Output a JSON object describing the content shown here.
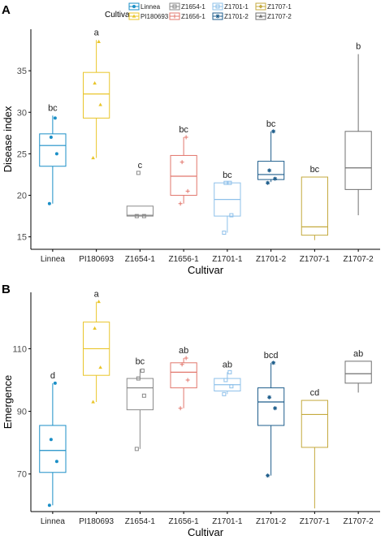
{
  "panels": [
    {
      "letter": "A",
      "legend": {
        "title": "Cultivar",
        "entries": [
          "Linnea",
          "PI180693",
          "Z1654-1",
          "Z1656-1",
          "Z1701-1",
          "Z1701-2",
          "Z1707-1",
          "Z1707-2"
        ]
      }
    },
    {
      "letter": "B"
    }
  ],
  "colors": {
    "Linnea": "#1b8fc7",
    "PI180693": "#e9c52a",
    "Z1654-1": "#8a8a8a",
    "Z1656-1": "#e2776d",
    "Z1701-1": "#8ec0ea",
    "Z1701-2": "#1f5e8c",
    "Z1707-1": "#c4aa3e",
    "Z1707-2": "#707070"
  },
  "chart_data": [
    {
      "type": "boxplot",
      "xlabel": "Cultivar",
      "ylabel": "Disease index",
      "ylim": [
        13.5,
        40
      ],
      "yticks": [
        15,
        20,
        25,
        30,
        35
      ],
      "categories": [
        "Linnea",
        "PI180693",
        "Z1654-1",
        "Z1656-1",
        "Z1701-1",
        "Z1701-2",
        "Z1707-1",
        "Z1707-2"
      ],
      "boxes": [
        {
          "cultivar": "Linnea",
          "letter": "bc",
          "q1": 23.5,
          "median": 26.0,
          "q3": 27.4,
          "whisker_low": 19.0,
          "whisker_high": 29.6,
          "points": [
            19.0,
            25.0,
            27.0,
            29.3
          ]
        },
        {
          "cultivar": "PI180693",
          "letter": "a",
          "q1": 29.3,
          "median": 32.2,
          "q3": 34.8,
          "whisker_low": 24.5,
          "whisker_high": 38.7,
          "points": [
            24.5,
            30.9,
            33.5,
            38.5
          ]
        },
        {
          "cultivar": "Z1654-1",
          "letter": "c",
          "q1": 17.5,
          "median": 17.6,
          "q3": 18.7,
          "whisker_low": 17.5,
          "whisker_high": 18.7,
          "points": [
            17.5,
            17.5,
            22.7
          ]
        },
        {
          "cultivar": "Z1656-1",
          "letter": "bc",
          "q1": 20.0,
          "median": 22.3,
          "q3": 24.8,
          "whisker_low": 19.0,
          "whisker_high": 27.0,
          "points": [
            19.0,
            20.5,
            24.0,
            27.0
          ]
        },
        {
          "cultivar": "Z1701-1",
          "letter": "bc",
          "q1": 17.5,
          "median": 19.5,
          "q3": 21.5,
          "whisker_low": 15.5,
          "whisker_high": 21.5,
          "points": [
            15.5,
            17.6,
            21.5,
            21.5
          ]
        },
        {
          "cultivar": "Z1701-2",
          "letter": "bc",
          "q1": 21.9,
          "median": 22.5,
          "q3": 24.1,
          "whisker_low": 21.6,
          "whisker_high": 27.7,
          "points": [
            21.5,
            22.0,
            23.0,
            27.7
          ]
        },
        {
          "cultivar": "Z1707-1",
          "letter": "bc",
          "q1": 15.2,
          "median": 16.2,
          "q3": 22.2,
          "whisker_low": 14.6,
          "whisker_high": 22.2,
          "points": []
        },
        {
          "cultivar": "Z1707-2",
          "letter": "b",
          "q1": 20.7,
          "median": 23.3,
          "q3": 27.7,
          "whisker_low": 17.6,
          "whisker_high": 37.0,
          "points": []
        }
      ]
    },
    {
      "type": "boxplot",
      "xlabel": "Cultivar",
      "ylabel": "Emergence",
      "ylim": [
        58,
        128
      ],
      "yticks": [
        70,
        90,
        110
      ],
      "categories": [
        "Linnea",
        "PI180693",
        "Z1654-1",
        "Z1656-1",
        "Z1701-1",
        "Z1701-2",
        "Z1707-1",
        "Z1707-2"
      ],
      "boxes": [
        {
          "cultivar": "Linnea",
          "letter": "d",
          "q1": 70.5,
          "median": 77.5,
          "q3": 85.5,
          "whisker_low": 60.0,
          "whisker_high": 99.0,
          "points": [
            60.0,
            74.0,
            81.0,
            99.0
          ]
        },
        {
          "cultivar": "PI180693",
          "letter": "a",
          "q1": 101.5,
          "median": 110.0,
          "q3": 118.5,
          "whisker_low": 93.0,
          "whisker_high": 125.0,
          "points": [
            93.0,
            104.0,
            116.5,
            125.0
          ]
        },
        {
          "cultivar": "Z1654-1",
          "letter": "bc",
          "q1": 90.5,
          "median": 97.5,
          "q3": 100.5,
          "whisker_low": 78.0,
          "whisker_high": 103.5,
          "points": [
            78.0,
            95.0,
            100.5,
            103.0
          ]
        },
        {
          "cultivar": "Z1656-1",
          "letter": "ab",
          "q1": 97.5,
          "median": 102.5,
          "q3": 105.5,
          "whisker_low": 91.0,
          "whisker_high": 107.0,
          "points": [
            91.0,
            100.0,
            105.0,
            107.0
          ]
        },
        {
          "cultivar": "Z1701-1",
          "letter": "ab",
          "q1": 96.5,
          "median": 98.5,
          "q3": 100.5,
          "whisker_low": 95.5,
          "whisker_high": 102.5,
          "points": [
            95.5,
            98.0,
            100.0,
            102.5
          ]
        },
        {
          "cultivar": "Z1701-2",
          "letter": "bcd",
          "q1": 85.5,
          "median": 93.0,
          "q3": 97.5,
          "whisker_low": 69.5,
          "whisker_high": 105.5,
          "points": [
            69.5,
            91.0,
            94.5,
            105.5
          ]
        },
        {
          "cultivar": "Z1707-1",
          "letter": "cd",
          "q1": 78.5,
          "median": 89.0,
          "q3": 93.5,
          "whisker_low": 59.0,
          "whisker_high": 93.5,
          "points": []
        },
        {
          "cultivar": "Z1707-2",
          "letter": "ab",
          "q1": 99.0,
          "median": 102.0,
          "q3": 106.0,
          "whisker_low": 96.0,
          "whisker_high": 106.0,
          "points": []
        }
      ]
    }
  ]
}
